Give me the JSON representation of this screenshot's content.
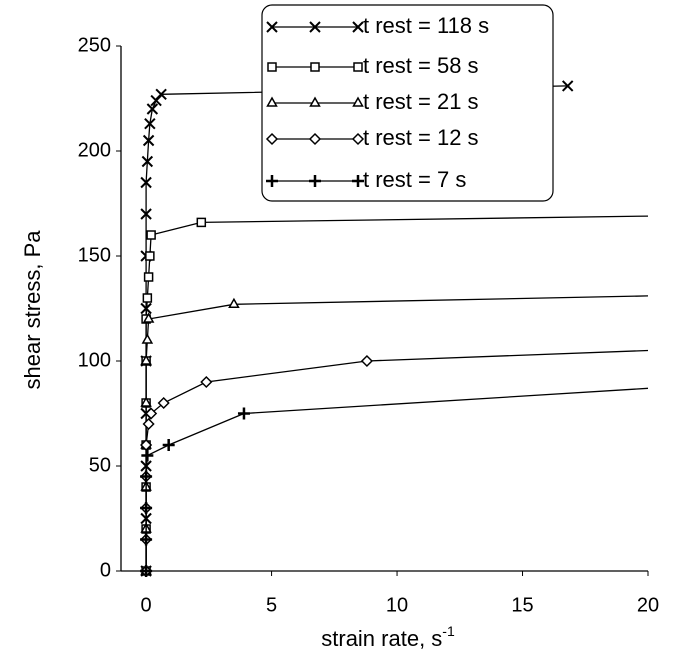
{
  "chart_data": {
    "type": "line",
    "x_label": "strain rate, s",
    "x_label_exponent": "-1",
    "y_label": "shear stress, Pa",
    "xlim": [
      -1,
      20
    ],
    "xticks": [
      0,
      5,
      10,
      15,
      20
    ],
    "ylim": [
      0,
      250
    ],
    "yticks": [
      0,
      50,
      100,
      150,
      200,
      250
    ],
    "legend": "top-right",
    "series": [
      {
        "name": "t rest = 118 s",
        "color": "#000000",
        "marker": "x",
        "x": [
          0,
          0,
          0,
          0,
          0,
          0,
          0,
          0,
          0,
          0.05,
          0.1,
          0.15,
          0.25,
          0.4,
          0.6,
          16.8
        ],
        "values": [
          0,
          25,
          50,
          75,
          100,
          125,
          150,
          170,
          185,
          195,
          205,
          213,
          220,
          224,
          227,
          231
        ]
      },
      {
        "name": "t rest = 58 s",
        "color": "#000000",
        "marker": "square",
        "x": [
          0,
          0,
          0,
          0,
          0,
          0,
          0,
          0.05,
          0.1,
          0.15,
          0.2,
          2.2
        ],
        "values": [
          0,
          20,
          40,
          60,
          80,
          100,
          120,
          130,
          140,
          150,
          160,
          166
        ],
        "x_tail": 20,
        "tail_value": 169
      },
      {
        "name": "t rest = 21 s",
        "color": "#000000",
        "marker": "triangle",
        "x": [
          0,
          0,
          0,
          0,
          0,
          0,
          0.05,
          0.1,
          3.5
        ],
        "values": [
          0,
          20,
          40,
          60,
          80,
          100,
          110,
          120,
          127
        ],
        "x_tail": 20,
        "tail_value": 131
      },
      {
        "name": "t rest = 12 s",
        "color": "#000000",
        "marker": "diamond",
        "x": [
          0,
          0,
          0,
          0,
          0,
          0.1,
          0.2,
          0.7,
          2.4,
          8.8
        ],
        "values": [
          0,
          15,
          30,
          45,
          60,
          70,
          75,
          80,
          90,
          100
        ],
        "x_tail": 20,
        "tail_value": 105
      },
      {
        "name": "t rest = 7 s",
        "color": "#000000",
        "marker": "plus",
        "x": [
          0,
          0,
          0,
          0,
          0.05,
          0.9,
          3.9
        ],
        "values": [
          0,
          15,
          30,
          45,
          55,
          60,
          75
        ],
        "x_tail": 20,
        "tail_value": 87
      }
    ]
  }
}
